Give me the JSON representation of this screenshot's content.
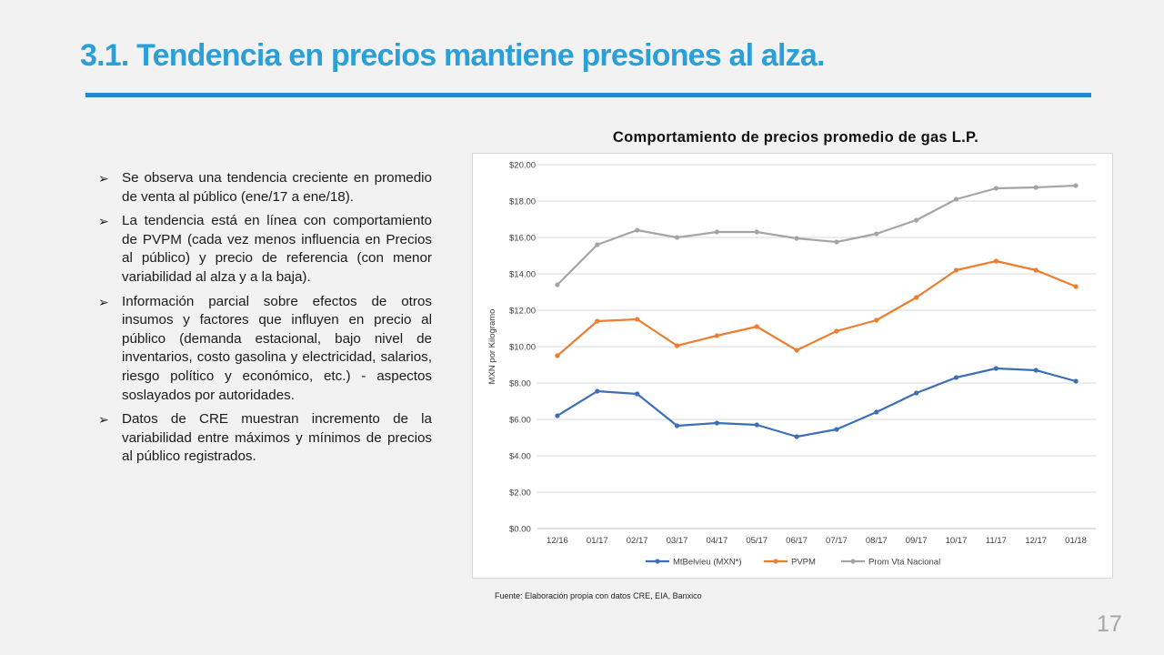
{
  "slide": {
    "title": "3.1. Tendencia en precios mantiene presiones al alza.",
    "page_number": "17",
    "source": "Fuente: Elaboración propia con datos CRE, EIA, Banxico",
    "bullet_marker": "➢",
    "bullets": [
      "Se observa una tendencia creciente en promedio de venta al público (ene/17 a ene/18).",
      "La tendencia está en línea con comportamiento de PVPM (cada vez menos influencia en Precios al público) y precio de referencia (con menor variabilidad al alza y a la baja).",
      "Información parcial sobre efectos de otros insumos y factores que influyen en precio al público (demanda estacional, bajo nivel de inventarios, costo gasolina y electricidad, salarios, riesgo político y económico, etc.)  - aspectos soslayados por autoridades.",
      "Datos de CRE muestran incremento de la variabilidad entre máximos y mínimos de precios al público registrados."
    ]
  },
  "chart_data": {
    "type": "line",
    "title": "Comportamiento de precios promedio de gas L.P.",
    "xlabel": "",
    "ylabel": "MXN por Kilogramo",
    "categories": [
      "12/16",
      "01/17",
      "02/17",
      "03/17",
      "04/17",
      "05/17",
      "06/17",
      "07/17",
      "08/17",
      "09/17",
      "10/17",
      "11/17",
      "12/17",
      "01/18"
    ],
    "ylim": [
      0,
      20
    ],
    "yticks": [
      "$0.00",
      "$2.00",
      "$4.00",
      "$6.00",
      "$8.00",
      "$10.00",
      "$12.00",
      "$14.00",
      "$16.00",
      "$18.00",
      "$20.00"
    ],
    "grid": true,
    "legend": "bottom",
    "series": [
      {
        "name": "MtBelvieu (MXN*)",
        "color": "#3d6fb6",
        "values": [
          6.2,
          7.55,
          7.4,
          5.65,
          5.8,
          5.7,
          5.05,
          5.45,
          6.4,
          7.45,
          8.3,
          8.8,
          8.7,
          8.1
        ]
      },
      {
        "name": "PVPM",
        "color": "#ed7d31",
        "values": [
          9.5,
          11.4,
          11.5,
          10.05,
          10.6,
          11.1,
          9.8,
          10.85,
          11.45,
          12.7,
          14.2,
          14.7,
          14.2,
          13.3
        ]
      },
      {
        "name": "Prom Vta Nacional",
        "color": "#a5a5a5",
        "values": [
          13.4,
          15.6,
          16.4,
          16.0,
          16.3,
          16.3,
          15.95,
          15.75,
          16.2,
          16.95,
          18.1,
          18.7,
          18.75,
          18.85
        ]
      }
    ]
  }
}
